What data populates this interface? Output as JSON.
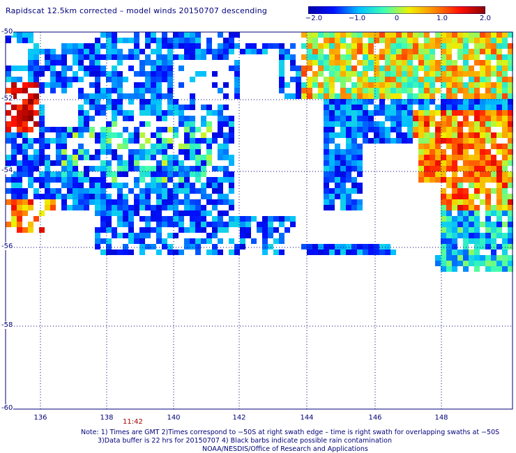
{
  "title": "Rapidscat 12.5km corrected – model winds 20150707 descending",
  "colorbar": {
    "ticks": [
      "−2.0",
      "−1.0",
      "0",
      "1.0",
      "2.0"
    ],
    "colors": [
      "#0000a8",
      "#0010ff",
      "#00c0ff",
      "#40ffb0",
      "#f0f000",
      "#ff8800",
      "#ff1000",
      "#8a0000"
    ]
  },
  "map": {
    "lat_labels": [
      "-50",
      "-52",
      "-54",
      "-56",
      "-58",
      "-60"
    ],
    "lon_labels": [
      "136",
      "138",
      "140",
      "142",
      "144",
      "146",
      "148"
    ],
    "lat_range": [
      -60,
      -50
    ],
    "lon_range": [
      135.2,
      150.0
    ],
    "grid": "dotted",
    "swath_time": "11:42"
  },
  "notes": {
    "line1": "Note: 1) Times are GMT 2)Times correspond to −50S at right swath edge – time is right swath for overlapping swaths at −50S",
    "line2": "3)Data buffer is 22 hrs for 20150707 4) Black barbs indicate possible rain contamination",
    "line3": "NOAA/NESDIS/Office of Research and Applications"
  }
}
